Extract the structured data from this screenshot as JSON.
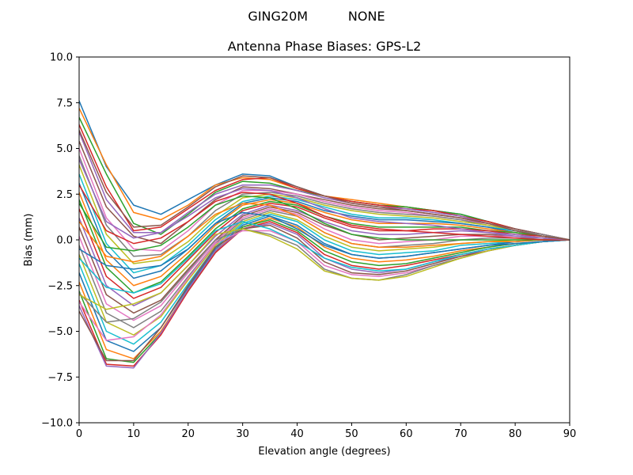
{
  "figure": {
    "suptitle": "GING20M          NONE"
  },
  "chart_data": {
    "type": "line",
    "title": "Antenna Phase Biases: GPS-L2",
    "xlabel": "Elevation angle (degrees)",
    "ylabel": "Bias (mm)",
    "xlim": [
      0,
      90
    ],
    "ylim": [
      -10,
      10
    ],
    "xticks": [
      0,
      10,
      20,
      30,
      40,
      50,
      60,
      70,
      80,
      90
    ],
    "yticks": [
      -10.0,
      -7.5,
      -5.0,
      -2.5,
      0.0,
      2.5,
      5.0,
      7.5,
      10.0
    ],
    "xtick_labels": [
      "0",
      "10",
      "20",
      "30",
      "40",
      "50",
      "60",
      "70",
      "80",
      "90"
    ],
    "ytick_labels": [
      "−10.0",
      "−7.5",
      "−5.0",
      "−2.5",
      "0.0",
      "2.5",
      "5.0",
      "7.5",
      "10.0"
    ],
    "grid": false,
    "legend": "none",
    "x": [
      0,
      5,
      10,
      15,
      20,
      25,
      30,
      35,
      40,
      45,
      50,
      55,
      60,
      65,
      70,
      75,
      80,
      85,
      90
    ],
    "color_cycle": [
      "#1f77b4",
      "#ff7f0e",
      "#2ca02c",
      "#d62728",
      "#9467bd",
      "#8c564b",
      "#e377c2",
      "#7f7f7f",
      "#bcbd22",
      "#17becf"
    ],
    "series": [
      {
        "values": [
          7.6,
          4.0,
          1.9,
          1.4,
          2.2,
          3.0,
          3.6,
          3.5,
          2.9,
          2.4,
          2.1,
          1.9,
          1.8,
          1.6,
          1.4,
          1.0,
          0.6,
          0.3,
          0.0
        ]
      },
      {
        "values": [
          7.2,
          4.1,
          1.5,
          1.1,
          1.9,
          3.0,
          3.4,
          3.3,
          2.8,
          2.4,
          2.2,
          2.0,
          1.8,
          1.6,
          1.3,
          1.0,
          0.6,
          0.3,
          0.0
        ]
      },
      {
        "values": [
          6.7,
          3.6,
          0.9,
          0.3,
          1.4,
          2.6,
          3.2,
          3.1,
          2.7,
          2.4,
          2.1,
          1.9,
          1.8,
          1.6,
          1.4,
          1.0,
          0.6,
          0.3,
          0.0
        ]
      },
      {
        "values": [
          6.3,
          2.9,
          0.5,
          0.7,
          1.7,
          2.7,
          3.3,
          3.4,
          2.8,
          2.4,
          2.1,
          1.9,
          1.7,
          1.6,
          1.3,
          1.0,
          0.6,
          0.3,
          0.0
        ]
      },
      {
        "values": [
          5.9,
          2.2,
          0.4,
          0.4,
          1.5,
          2.5,
          3.0,
          3.0,
          2.7,
          2.3,
          2.0,
          1.8,
          1.7,
          1.5,
          1.3,
          0.9,
          0.6,
          0.3,
          0.0
        ]
      },
      {
        "values": [
          5.4,
          1.8,
          0.2,
          -0.2,
          1.0,
          2.2,
          2.9,
          2.8,
          2.5,
          2.2,
          1.9,
          1.7,
          1.6,
          1.4,
          1.2,
          0.9,
          0.6,
          0.3,
          0.0
        ]
      },
      {
        "values": [
          5.0,
          1.2,
          -0.5,
          -0.6,
          0.5,
          1.9,
          2.7,
          2.7,
          2.5,
          2.1,
          1.8,
          1.6,
          1.5,
          1.3,
          1.1,
          0.9,
          0.5,
          0.3,
          0.0
        ]
      },
      {
        "values": [
          4.6,
          0.8,
          -0.9,
          -0.8,
          0.2,
          1.6,
          2.5,
          2.6,
          2.4,
          2.0,
          1.7,
          1.5,
          1.4,
          1.3,
          1.1,
          0.8,
          0.5,
          0.3,
          0.0
        ]
      },
      {
        "values": [
          4.1,
          0.3,
          -1.3,
          -1.1,
          -0.1,
          1.3,
          2.3,
          2.5,
          2.3,
          1.9,
          1.6,
          1.4,
          1.3,
          1.2,
          1.0,
          0.8,
          0.5,
          0.2,
          0.0
        ]
      },
      {
        "values": [
          3.6,
          -0.2,
          -1.8,
          -1.4,
          -0.3,
          1.1,
          2.1,
          2.4,
          2.2,
          1.8,
          1.4,
          1.2,
          1.2,
          1.1,
          0.9,
          0.7,
          0.5,
          0.2,
          0.0
        ]
      },
      {
        "values": [
          3.1,
          -0.6,
          -2.1,
          -1.7,
          -0.5,
          0.9,
          2.0,
          2.3,
          2.1,
          1.6,
          1.3,
          1.1,
          1.1,
          1.0,
          0.9,
          0.7,
          0.4,
          0.2,
          0.0
        ]
      },
      {
        "values": [
          2.6,
          -1.1,
          -2.5,
          -2.0,
          -0.7,
          0.8,
          1.9,
          2.2,
          2.0,
          1.5,
          1.1,
          0.9,
          0.9,
          0.9,
          0.8,
          0.6,
          0.4,
          0.2,
          0.0
        ]
      },
      {
        "values": [
          2.2,
          -1.5,
          -2.9,
          -2.3,
          -0.9,
          0.6,
          1.7,
          2.1,
          1.9,
          1.3,
          0.9,
          0.7,
          0.7,
          0.7,
          0.7,
          0.5,
          0.4,
          0.2,
          0.0
        ]
      },
      {
        "values": [
          1.7,
          -2.0,
          -3.2,
          -2.6,
          -1.1,
          0.4,
          1.6,
          2.0,
          1.8,
          1.2,
          0.7,
          0.5,
          0.5,
          0.6,
          0.6,
          0.5,
          0.3,
          0.2,
          0.0
        ]
      },
      {
        "values": [
          1.2,
          -2.5,
          -3.6,
          -2.9,
          -1.4,
          0.2,
          1.4,
          1.9,
          1.6,
          1.0,
          0.5,
          0.3,
          0.3,
          0.4,
          0.5,
          0.4,
          0.3,
          0.1,
          0.0
        ]
      },
      {
        "values": [
          0.7,
          -3.0,
          -4.0,
          -3.3,
          -1.6,
          0.0,
          1.3,
          1.8,
          1.5,
          0.8,
          0.3,
          0.0,
          0.1,
          0.2,
          0.3,
          0.3,
          0.2,
          0.1,
          0.0
        ]
      },
      {
        "values": [
          0.2,
          -3.5,
          -4.4,
          -3.6,
          -1.8,
          -0.1,
          1.2,
          1.7,
          1.4,
          0.6,
          0.0,
          -0.2,
          -0.1,
          0.0,
          0.2,
          0.2,
          0.2,
          0.1,
          0.0
        ]
      },
      {
        "values": [
          -0.3,
          -4.0,
          -4.8,
          -3.9,
          -2.0,
          -0.2,
          1.1,
          1.6,
          1.3,
          0.4,
          -0.2,
          -0.4,
          -0.3,
          -0.2,
          0.0,
          0.1,
          0.1,
          0.1,
          0.0
        ]
      },
      {
        "values": [
          -0.8,
          -4.5,
          -5.2,
          -4.2,
          -2.2,
          -0.3,
          1.0,
          1.5,
          1.1,
          0.2,
          -0.4,
          -0.6,
          -0.5,
          -0.4,
          -0.2,
          -0.1,
          0.0,
          0.0,
          0.0
        ]
      },
      {
        "values": [
          -1.3,
          -5.0,
          -5.7,
          -4.5,
          -2.4,
          -0.4,
          0.9,
          1.4,
          1.0,
          0.0,
          -0.6,
          -0.8,
          -0.7,
          -0.6,
          -0.3,
          -0.2,
          -0.1,
          0.0,
          0.0
        ]
      },
      {
        "values": [
          -1.8,
          -5.5,
          -6.1,
          -4.8,
          -2.6,
          -0.5,
          0.8,
          1.3,
          0.8,
          -0.2,
          -0.8,
          -1.0,
          -0.9,
          -0.7,
          -0.5,
          -0.3,
          -0.1,
          0.0,
          0.0
        ]
      },
      {
        "values": [
          -2.3,
          -6.0,
          -6.5,
          -5.0,
          -2.7,
          -0.6,
          0.7,
          1.2,
          0.7,
          -0.4,
          -1.0,
          -1.2,
          -1.1,
          -0.9,
          -0.6,
          -0.4,
          -0.2,
          -0.1,
          0.0
        ]
      },
      {
        "values": [
          -2.8,
          -6.5,
          -6.7,
          -5.1,
          -2.8,
          -0.7,
          0.7,
          1.1,
          0.5,
          -0.6,
          -1.2,
          -1.4,
          -1.3,
          -1.0,
          -0.7,
          -0.4,
          -0.2,
          -0.1,
          0.0
        ]
      },
      {
        "values": [
          -3.3,
          -6.8,
          -6.9,
          -5.2,
          -2.8,
          -0.7,
          0.6,
          1.0,
          0.4,
          -0.8,
          -1.4,
          -1.6,
          -1.4,
          -1.1,
          -0.8,
          -0.5,
          -0.3,
          -0.1,
          0.0
        ]
      },
      {
        "values": [
          -3.6,
          -6.9,
          -7.0,
          -5.1,
          -2.7,
          -0.6,
          0.6,
          0.9,
          0.3,
          -1.0,
          -1.6,
          -1.8,
          -1.6,
          -1.2,
          -0.9,
          -0.5,
          -0.3,
          -0.1,
          0.0
        ]
      },
      {
        "values": [
          -3.9,
          -6.6,
          -6.6,
          -4.8,
          -2.5,
          -0.4,
          0.6,
          0.8,
          0.1,
          -1.2,
          -1.8,
          -1.9,
          -1.7,
          -1.3,
          -0.9,
          -0.6,
          -0.3,
          -0.1,
          0.0
        ]
      },
      {
        "values": [
          -3.4,
          -5.5,
          -5.3,
          -4.1,
          -2.1,
          -0.2,
          0.5,
          0.5,
          -0.1,
          -1.4,
          -1.9,
          -2.0,
          -1.8,
          -1.4,
          -1.0,
          -0.6,
          -0.3,
          -0.1,
          0.0
        ]
      },
      {
        "values": [
          -2.9,
          -4.5,
          -4.3,
          -3.4,
          -1.7,
          0.0,
          0.6,
          0.3,
          -0.3,
          -1.6,
          -2.1,
          -2.2,
          -1.9,
          -1.4,
          -1.0,
          -0.6,
          -0.3,
          -0.1,
          0.0
        ]
      },
      {
        "values": [
          -3.0,
          -3.8,
          -3.5,
          -2.9,
          -1.4,
          0.3,
          0.6,
          0.2,
          -0.5,
          -1.7,
          -2.1,
          -2.2,
          -2.0,
          -1.5,
          -1.0,
          -0.6,
          -0.3,
          -0.1,
          0.0
        ]
      },
      {
        "values": [
          -1.0,
          -2.6,
          -2.9,
          -2.4,
          -1.0,
          0.5,
          1.0,
          0.6,
          -0.1,
          -1.0,
          -1.5,
          -1.7,
          -1.6,
          -1.2,
          -0.8,
          -0.5,
          -0.3,
          -0.1,
          0.0
        ]
      },
      {
        "values": [
          -0.5,
          -1.4,
          -1.6,
          -1.4,
          -0.5,
          0.9,
          1.5,
          1.3,
          0.6,
          -0.3,
          -0.8,
          -1.0,
          -0.9,
          -0.7,
          -0.5,
          -0.3,
          -0.2,
          -0.1,
          0.0
        ]
      },
      {
        "values": [
          1.0,
          -0.9,
          -1.2,
          -0.9,
          0.2,
          1.4,
          2.0,
          1.9,
          1.3,
          0.4,
          -0.2,
          -0.4,
          -0.4,
          -0.3,
          -0.2,
          -0.1,
          -0.1,
          0.0,
          0.0
        ]
      },
      {
        "values": [
          2.0,
          -0.4,
          -0.6,
          -0.3,
          0.7,
          1.9,
          2.4,
          2.3,
          1.7,
          0.9,
          0.3,
          0.1,
          0.0,
          0.0,
          0.0,
          0.0,
          0.0,
          0.0,
          0.0
        ]
      },
      {
        "values": [
          3.0,
          0.5,
          -0.2,
          0.1,
          1.0,
          2.1,
          2.6,
          2.5,
          2.0,
          1.3,
          0.8,
          0.6,
          0.5,
          0.4,
          0.3,
          0.2,
          0.1,
          0.0,
          0.0
        ]
      },
      {
        "values": [
          4.4,
          1.0,
          0.1,
          0.4,
          1.3,
          2.3,
          2.8,
          2.7,
          2.3,
          1.7,
          1.2,
          1.0,
          0.9,
          0.8,
          0.6,
          0.4,
          0.2,
          0.1,
          0.0
        ]
      },
      {
        "values": [
          6.0,
          2.6,
          0.7,
          0.8,
          1.8,
          2.9,
          3.5,
          3.4,
          2.9,
          2.4,
          2.0,
          1.8,
          1.6,
          1.4,
          1.2,
          0.9,
          0.5,
          0.2,
          0.0
        ]
      }
    ]
  }
}
